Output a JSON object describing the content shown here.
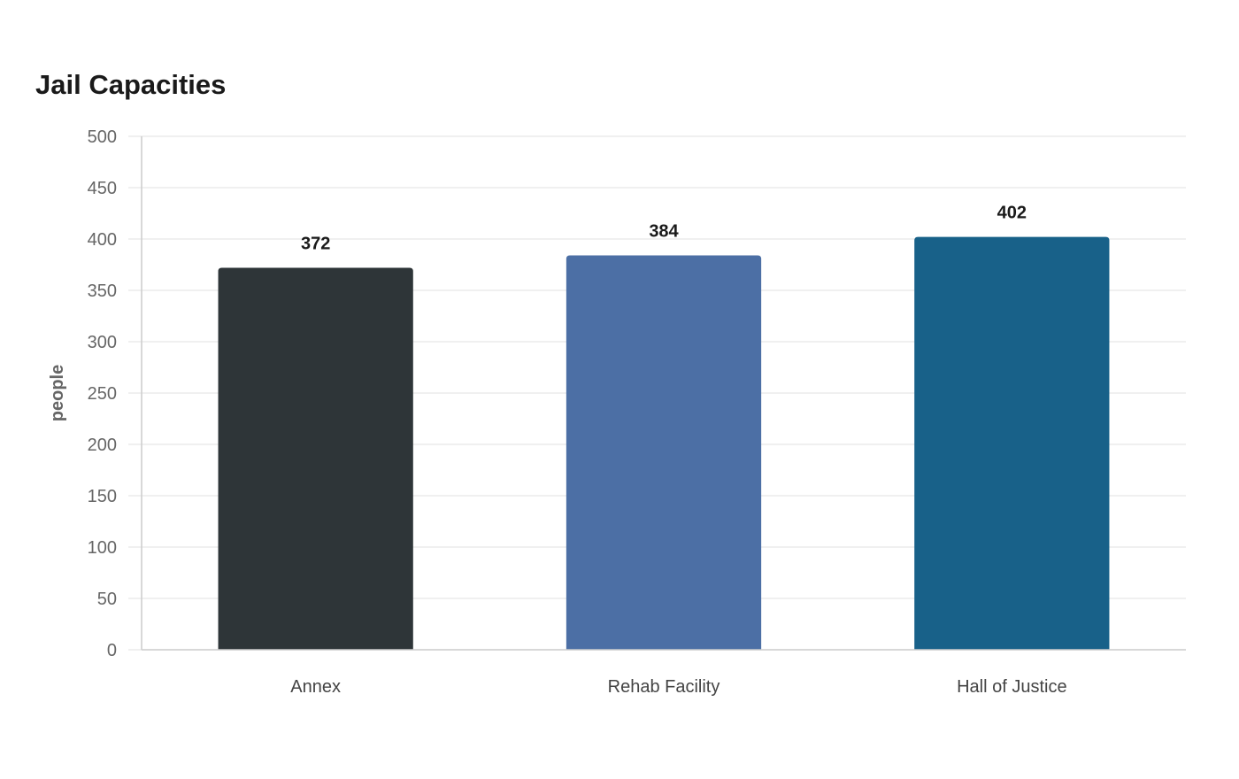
{
  "chart_data": {
    "type": "bar",
    "title": "Jail Capacities",
    "xlabel": "",
    "ylabel": "people",
    "categories": [
      "Annex",
      "Rehab Facility",
      "Hall of Justice"
    ],
    "values": [
      372,
      384,
      402
    ],
    "colors": [
      "#2e3538",
      "#4c6fa5",
      "#186189"
    ],
    "ylim": [
      0,
      500
    ],
    "yticks": [
      0,
      50,
      100,
      150,
      200,
      250,
      300,
      350,
      400,
      450,
      500
    ],
    "grid": true,
    "legend": "none"
  }
}
